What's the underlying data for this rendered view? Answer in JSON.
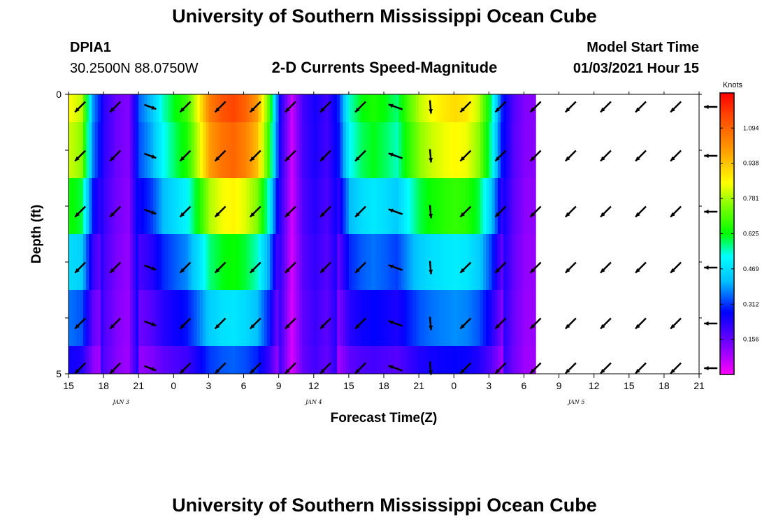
{
  "header": {
    "title": "University of Southern Mississippi Ocean Cube",
    "station": "DPIA1",
    "coords": "30.2500N 88.0750W",
    "plot_title": "2-D Currents Speed-Magnitude",
    "model_start_label": "Model Start Time",
    "model_start_value": "01/03/2021 Hour 15",
    "footer_title": "University of Southern Mississippi Ocean Cube"
  },
  "chart_data": {
    "type": "heatmap",
    "title": "2-D Currents Speed-Magnitude",
    "xlabel": "Forecast Time(Z)",
    "ylabel": "Depth (ft)",
    "ylim": [
      0,
      5
    ],
    "y_ticks": [
      "0",
      "5"
    ],
    "x_ticks": [
      "15",
      "18",
      "21",
      "0",
      "3",
      "6",
      "9",
      "12",
      "15",
      "18",
      "21",
      "0",
      "3",
      "6",
      "9",
      "12",
      "15",
      "18",
      "21"
    ],
    "date_labels": [
      {
        "label": "JAN 3",
        "hour_index": 4.5
      },
      {
        "label": "JAN 4",
        "hour_index": 21
      },
      {
        "label": "JAN 5",
        "hour_index": 43.5
      }
    ],
    "colorbar": {
      "unit": "Knots",
      "min": 0,
      "max": 1.25,
      "labels": [
        "1.094",
        "0.938",
        "0.781",
        "0.625",
        "0.469",
        "0.312",
        "0.156"
      ],
      "values": [
        1.094,
        0.938,
        0.781,
        0.625,
        0.469,
        0.312,
        0.156
      ]
    },
    "depth_layers": [
      "0-0.5",
      "0.5-1.5",
      "1.5-2.5",
      "2.5-3.5",
      "3.5-4.5",
      "4.5-5"
    ],
    "speed_profile_hourly": [
      0.85,
      0.8,
      0.38,
      0.22,
      0.15,
      0.12,
      0.35,
      0.42,
      0.55,
      0.62,
      0.68,
      0.85,
      1.05,
      1.12,
      1.15,
      1.1,
      1.0,
      0.72,
      0.25,
      0.05,
      0.2,
      0.25,
      0.2,
      0.3,
      0.55,
      0.62,
      0.65,
      0.62,
      0.58,
      0.7,
      0.8,
      0.85,
      0.88,
      0.9,
      0.88,
      0.8,
      0.6,
      0.3,
      0.18,
      0.12
    ],
    "depth_factor": [
      1.0,
      0.95,
      0.75,
      0.55,
      0.42,
      0.3
    ],
    "arrows": {
      "hours": [
        1,
        4,
        7,
        10,
        13,
        16,
        19,
        22,
        25,
        28,
        31,
        34,
        37,
        40,
        43,
        46,
        49,
        52,
        55
      ],
      "depths": [
        0.2,
        1.1,
        2.1,
        3.1,
        4.1,
        4.9
      ],
      "direction_deg": [
        135,
        135,
        20,
        135,
        135,
        135,
        135,
        135,
        135,
        200,
        85,
        135,
        135,
        135,
        135,
        135,
        135,
        135,
        180
      ],
      "length": [
        1,
        1,
        0.85,
        1,
        1,
        1,
        1,
        1,
        1,
        1,
        0.9,
        1,
        1,
        1,
        1,
        1,
        1,
        1,
        0.9
      ]
    }
  }
}
